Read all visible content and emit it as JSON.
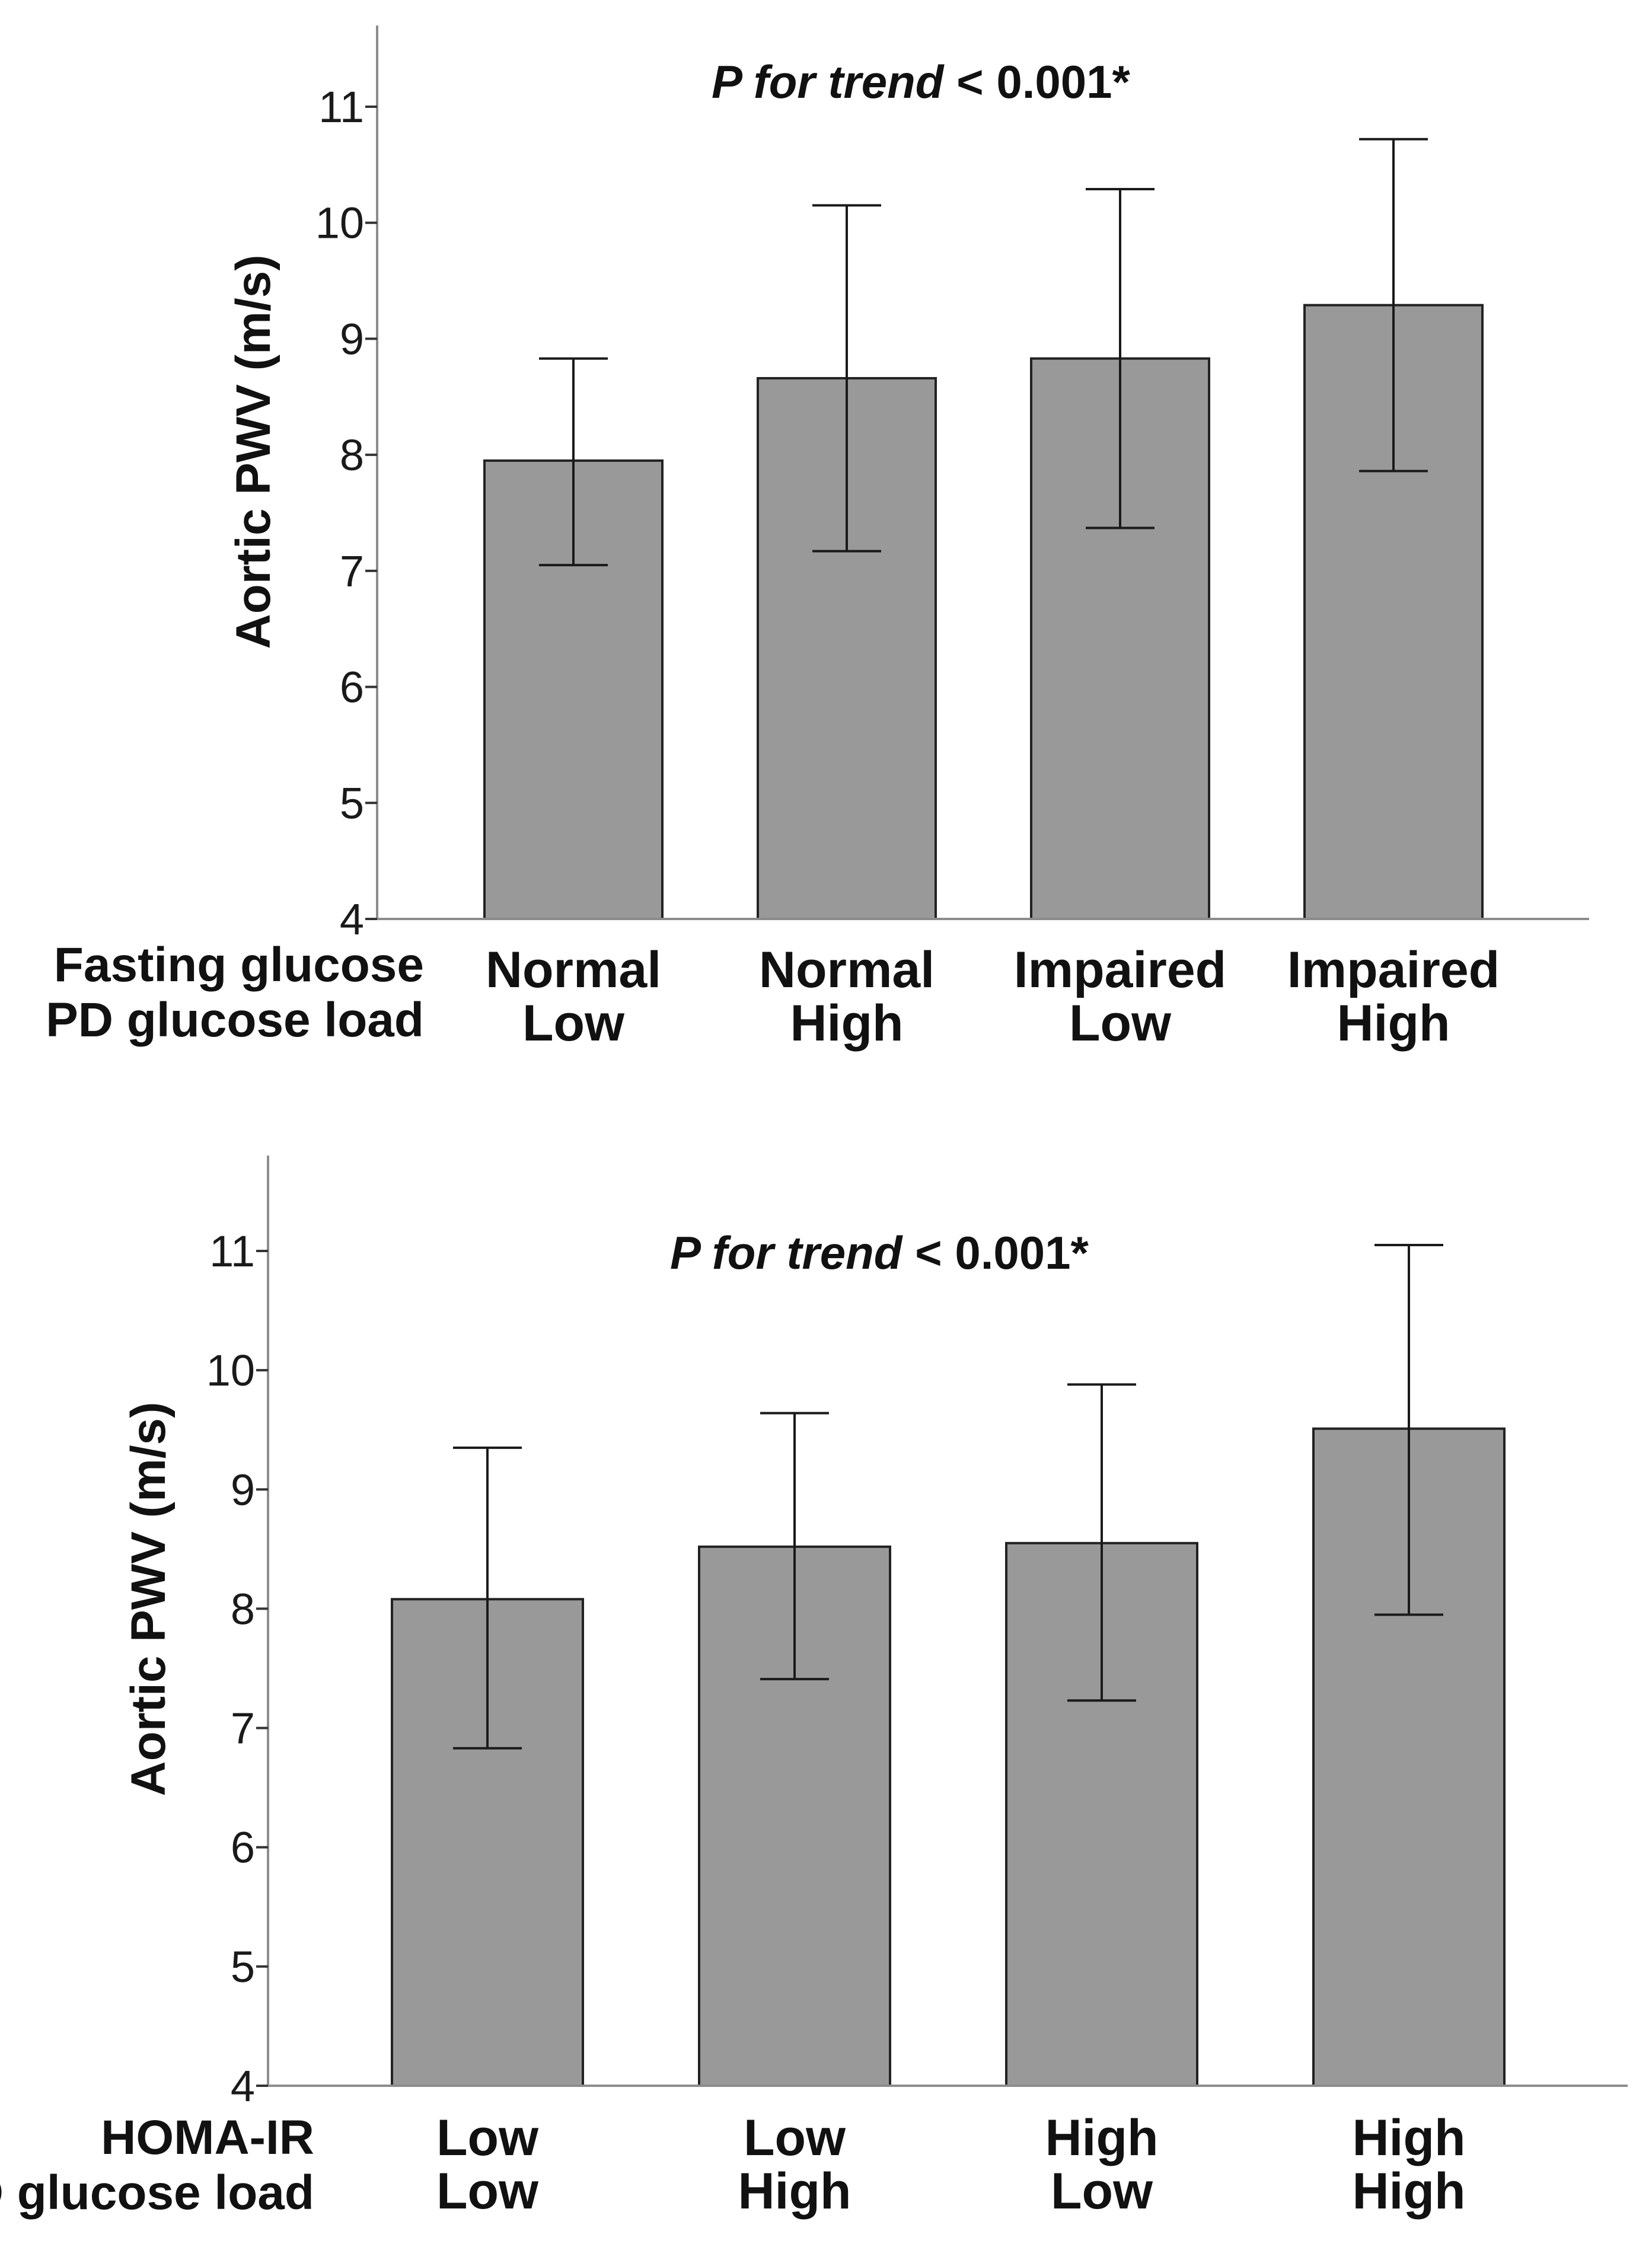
{
  "chart_data": [
    {
      "type": "bar",
      "panel": "top",
      "ylabel": "Aortic PWV (m/s)",
      "ylim": [
        4,
        11.7
      ],
      "yticks": [
        4,
        5,
        6,
        7,
        8,
        9,
        10,
        11
      ],
      "ytick_labels": [
        "4",
        "5",
        "6",
        "7",
        "8",
        "9",
        "10",
        "11"
      ],
      "annotation": {
        "italic": "P for trend",
        "rest": " < 0.001*"
      },
      "row_labels": [
        "Fasting glucose",
        "PD glucose load"
      ],
      "categories": [
        {
          "line1": "Normal",
          "line2": "Low"
        },
        {
          "line1": "Normal",
          "line2": "High"
        },
        {
          "line1": "Impaired",
          "line2": "Low"
        },
        {
          "line1": "Impaired",
          "line2": "High"
        }
      ],
      "values": [
        7.95,
        8.66,
        8.83,
        9.29
      ],
      "error_low": [
        7.05,
        7.17,
        7.37,
        7.86
      ],
      "error_high": [
        8.83,
        10.15,
        10.29,
        10.72
      ],
      "bar_color": "#999999"
    },
    {
      "type": "bar",
      "panel": "bottom",
      "ylabel": "Aortic PWV (m/s)",
      "ylim": [
        4,
        11.8
      ],
      "yticks": [
        4,
        5,
        6,
        7,
        8,
        9,
        10,
        11
      ],
      "ytick_labels": [
        "4",
        "5",
        "6",
        "7",
        "8",
        "9",
        "10",
        "11"
      ],
      "annotation": {
        "italic": "P for trend",
        "rest": " < 0.001*"
      },
      "row_labels": [
        "HOMA-IR",
        "PD glucose load"
      ],
      "categories": [
        {
          "line1": "Low",
          "line2": "Low"
        },
        {
          "line1": "Low",
          "line2": "High"
        },
        {
          "line1": "High",
          "line2": "Low"
        },
        {
          "line1": "High",
          "line2": "High"
        }
      ],
      "values": [
        8.08,
        8.52,
        8.55,
        9.51
      ],
      "error_low": [
        6.83,
        7.41,
        7.23,
        7.95
      ],
      "error_high": [
        9.35,
        9.64,
        9.88,
        11.05
      ],
      "bar_color": "#999999"
    }
  ]
}
